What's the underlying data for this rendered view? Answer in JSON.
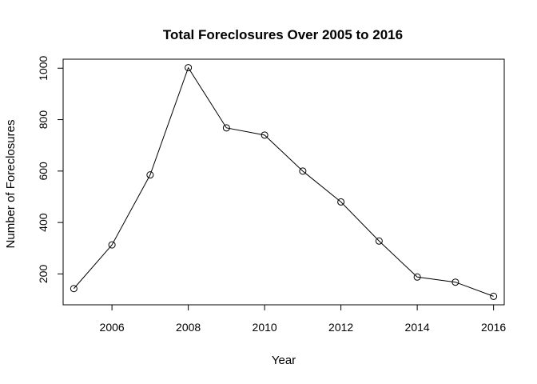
{
  "chart_data": {
    "type": "line",
    "title": "Total Foreclosures Over 2005 to 2016",
    "xlabel": "Year",
    "ylabel": "Number of Foreclosures",
    "x": [
      2005,
      2006,
      2007,
      2008,
      2009,
      2010,
      2011,
      2012,
      2013,
      2014,
      2015,
      2016
    ],
    "series": [
      {
        "values": [
          143,
          313,
          585,
          1002,
          768,
          740,
          600,
          480,
          328,
          188,
          168,
          113
        ]
      }
    ],
    "xlim": [
      2004.72,
      2016.28
    ],
    "ylim": [
      80,
      1035
    ],
    "xticks": [
      2006,
      2008,
      2010,
      2012,
      2014,
      2016
    ],
    "yticks": [
      200,
      400,
      600,
      800,
      1000
    ],
    "marker": "open-circle",
    "grid": false,
    "legend": "none"
  }
}
